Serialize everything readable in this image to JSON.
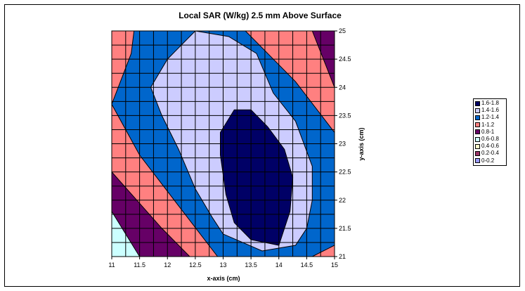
{
  "chart_data": {
    "type": "contour",
    "title": "Local SAR (W/kg) 2.5 mm Above Surface",
    "xlabel": "x-axis (cm)",
    "ylabel": "y-axis (cm)",
    "xlim": [
      11,
      15
    ],
    "ylim": [
      21,
      25
    ],
    "x_ticks": [
      "11",
      "11.5",
      "12",
      "12.5",
      "13",
      "13.5",
      "14",
      "14.5",
      "15"
    ],
    "y_ticks": [
      "25",
      "24.5",
      "24",
      "23.5",
      "23",
      "22.5",
      "22",
      "21.5",
      "21"
    ],
    "grid": true,
    "legend_position": "right",
    "legend": [
      {
        "label": "1.6-1.8",
        "color": "#000066"
      },
      {
        "label": "1.4-1.6",
        "color": "#ccccff"
      },
      {
        "label": "1.2-1.4",
        "color": "#0066cc"
      },
      {
        "label": "1-1.2",
        "color": "#ff8080"
      },
      {
        "label": "0.8-1",
        "color": "#660066"
      },
      {
        "label": "0.6-0.8",
        "color": "#ccffff"
      },
      {
        "label": "0.4-0.6",
        "color": "#ffffcc"
      },
      {
        "label": "0.2-0.4",
        "color": "#993366"
      },
      {
        "label": "0-0.2",
        "color": "#9999ff"
      }
    ],
    "regions": [
      {
        "band": "0.6-0.8",
        "color": "#ccffff",
        "points": [
          [
            11,
            21
          ],
          [
            15,
            21
          ],
          [
            15,
            25
          ],
          [
            11,
            25
          ]
        ]
      },
      {
        "band": "0.8-1",
        "color": "#660066",
        "points": [
          [
            11,
            21.8
          ],
          [
            11.5,
            21
          ],
          [
            15,
            21
          ],
          [
            15,
            25
          ],
          [
            11,
            25
          ]
        ]
      },
      {
        "band": "1-1.2",
        "color": "#ff8080",
        "points": [
          [
            11,
            22.5
          ],
          [
            11.9,
            21.5
          ],
          [
            12.4,
            21
          ],
          [
            15,
            21
          ],
          [
            15,
            24
          ],
          [
            14.6,
            25
          ],
          [
            11,
            25
          ]
        ]
      },
      {
        "band": "1.2-1.4",
        "color": "#0066cc",
        "points": [
          [
            11,
            23.7
          ],
          [
            11.5,
            22.8
          ],
          [
            12.2,
            21.9
          ],
          [
            12.9,
            21
          ],
          [
            14.6,
            21
          ],
          [
            15,
            21.2
          ],
          [
            15,
            23.2
          ],
          [
            14.3,
            24.1
          ],
          [
            13.4,
            25
          ],
          [
            11.4,
            25
          ],
          [
            11.35,
            24.6
          ]
        ]
      },
      {
        "band": "1.4-1.6",
        "color": "#ccccff",
        "points": [
          [
            12.5,
            25
          ],
          [
            12,
            24.5
          ],
          [
            11.7,
            24
          ],
          [
            11.9,
            23.5
          ],
          [
            12.2,
            22.9
          ],
          [
            12.5,
            22.2
          ],
          [
            12.8,
            21.7
          ],
          [
            13,
            21.4
          ],
          [
            13.7,
            21.1
          ],
          [
            14.3,
            21.2
          ],
          [
            14.5,
            21.5
          ],
          [
            14.6,
            22
          ],
          [
            14.6,
            22.6
          ],
          [
            14.3,
            23.4
          ],
          [
            13.9,
            23.9
          ],
          [
            13.6,
            24.6
          ],
          [
            13.1,
            24.9
          ]
        ]
      },
      {
        "band": "1.6-1.8",
        "color": "#000066",
        "points": [
          [
            13.2,
            23.6
          ],
          [
            13.5,
            23.6
          ],
          [
            13.8,
            23.3
          ],
          [
            14.1,
            22.9
          ],
          [
            14.25,
            22.4
          ],
          [
            14.2,
            21.8
          ],
          [
            14,
            21.2
          ],
          [
            13.5,
            21.3
          ],
          [
            13.2,
            21.6
          ],
          [
            13.05,
            22.1
          ],
          [
            12.95,
            22.8
          ],
          [
            12.95,
            23.2
          ]
        ]
      }
    ]
  }
}
